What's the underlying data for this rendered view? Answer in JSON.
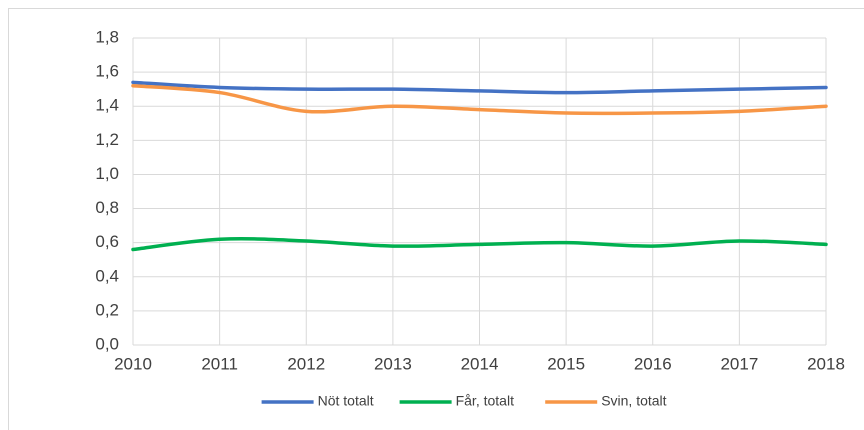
{
  "chart_data": {
    "type": "line",
    "x": [
      2010,
      2011,
      2012,
      2013,
      2014,
      2015,
      2016,
      2017,
      2018
    ],
    "xlim": [
      2010,
      2018
    ],
    "xticks": [
      2010,
      2011,
      2012,
      2013,
      2014,
      2015,
      2016,
      2017,
      2018
    ],
    "ylim": [
      0,
      1.8
    ],
    "yticks": [
      {
        "value": 0,
        "label": "0,0"
      },
      {
        "value": 0.2,
        "label": "0,2"
      },
      {
        "value": 0.4,
        "label": "0,4"
      },
      {
        "value": 0.6,
        "label": "0,6"
      },
      {
        "value": 0.8,
        "label": "0,8"
      },
      {
        "value": 1.0,
        "label": "1,0"
      },
      {
        "value": 1.2,
        "label": "1,2"
      },
      {
        "value": 1.4,
        "label": "1,4"
      },
      {
        "value": 1.6,
        "label": "1,6"
      },
      {
        "value": 1.8,
        "label": "1,8"
      }
    ],
    "grid": true,
    "legend": "bottom",
    "series": [
      {
        "name": "Nöt totalt",
        "color": "#4472c4",
        "values": [
          1.54,
          1.51,
          1.5,
          1.5,
          1.49,
          1.48,
          1.49,
          1.5,
          1.51
        ]
      },
      {
        "name": "Får, totalt",
        "color": "#00b050",
        "values": [
          0.56,
          0.62,
          0.61,
          0.58,
          0.59,
          0.6,
          0.58,
          0.61,
          0.59
        ]
      },
      {
        "name": "Svin, totalt",
        "color": "#f79646",
        "values": [
          1.52,
          1.48,
          1.37,
          1.4,
          1.38,
          1.36,
          1.36,
          1.37,
          1.4
        ]
      }
    ]
  }
}
